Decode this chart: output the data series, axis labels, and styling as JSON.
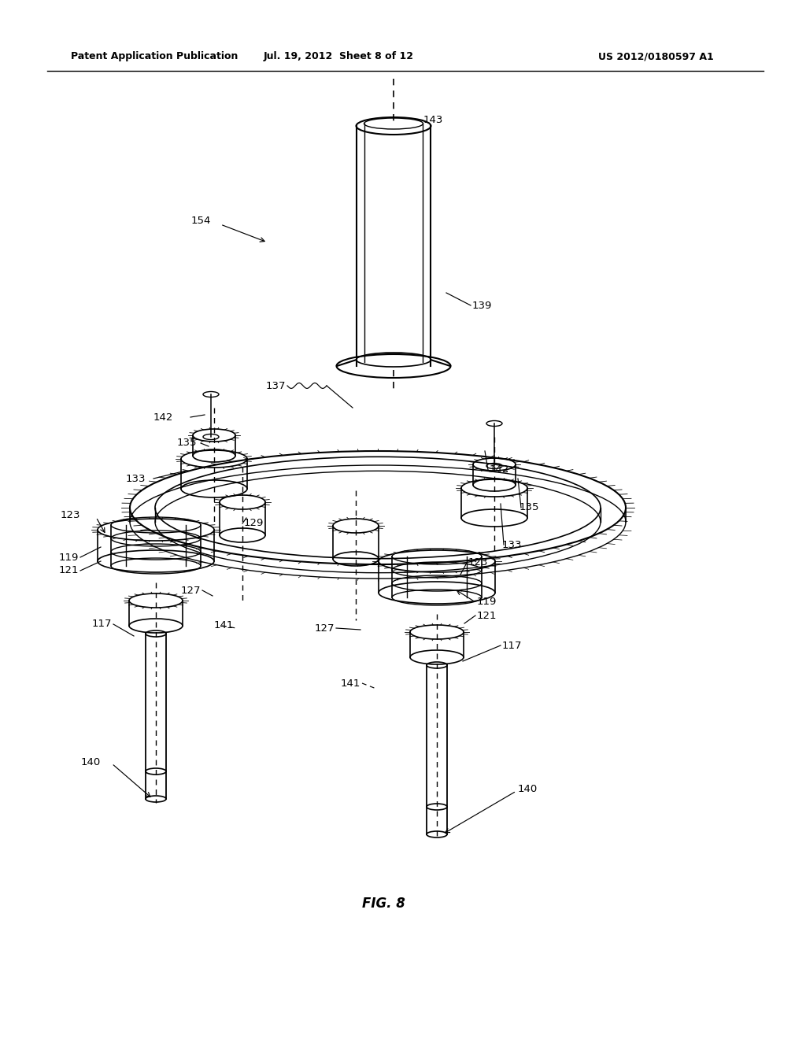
{
  "header_left": "Patent Application Publication",
  "header_mid": "Jul. 19, 2012  Sheet 8 of 12",
  "header_right": "US 2012/0180597 A1",
  "figure_label": "FIG. 8",
  "background_color": "#ffffff",
  "line_color": "#000000"
}
